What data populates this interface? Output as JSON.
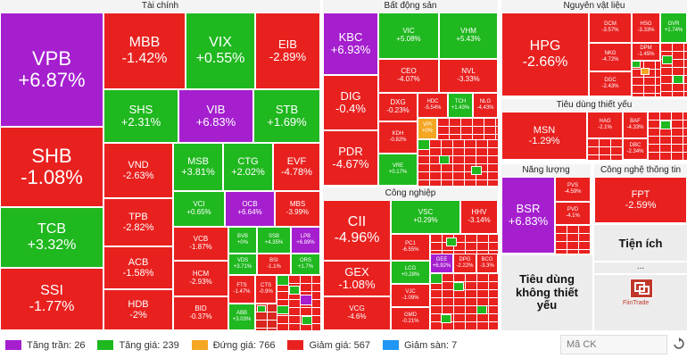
{
  "sectors": {
    "tai_chinh": "Tài chính",
    "bat_dong_san": "Bất động sản",
    "nguyen_vat_lieu": "Nguyên vật liệu",
    "tieu_dung_thiet_yeu": "Tiêu dùng thiết yếu",
    "cong_nghiep": "Công nghiệp",
    "nang_luong": "Năng lượng",
    "cong_nghe_thong_tin": "Công nghệ thông tin",
    "tien_ich": "Tiện ích",
    "tieu_dung_khong_thiet_yeu": "Tiêu dùng không thiết yếu",
    "more": "..."
  },
  "tiles": {
    "VPB": {
      "sym": "VPB",
      "chg": "+6.87%"
    },
    "SHB": {
      "sym": "SHB",
      "chg": "-1.08%"
    },
    "TCB": {
      "sym": "TCB",
      "chg": "+3.32%"
    },
    "SSI": {
      "sym": "SSI",
      "chg": "-1.77%"
    },
    "MBB": {
      "sym": "MBB",
      "chg": "-1.42%"
    },
    "VIX": {
      "sym": "VIX",
      "chg": "+0.55%"
    },
    "EIB": {
      "sym": "EIB",
      "chg": "-2.89%"
    },
    "SHS": {
      "sym": "SHS",
      "chg": "+2.31%"
    },
    "VIB": {
      "sym": "VIB",
      "chg": "+6.83%"
    },
    "STB": {
      "sym": "STB",
      "chg": "+1.69%"
    },
    "VND": {
      "sym": "VND",
      "chg": "-2.63%"
    },
    "MSB": {
      "sym": "MSB",
      "chg": "+3.81%"
    },
    "CTG": {
      "sym": "CTG",
      "chg": "+2.02%"
    },
    "EVF": {
      "sym": "EVF",
      "chg": "-4.78%"
    },
    "TPB": {
      "sym": "TPB",
      "chg": "-2.82%"
    },
    "VCI": {
      "sym": "VCI",
      "chg": "+0.65%"
    },
    "OCB": {
      "sym": "OCB",
      "chg": "+6.64%"
    },
    "MBS": {
      "sym": "MBS",
      "chg": "-3.99%"
    },
    "ACB": {
      "sym": "ACB",
      "chg": "-1.58%"
    },
    "VCB": {
      "sym": "VCB",
      "chg": "-1.87%"
    },
    "BVB": {
      "sym": "BVB",
      "chg": "+0%"
    },
    "SSB": {
      "sym": "SSB",
      "chg": "+4.35%"
    },
    "LPB": {
      "sym": "LPB",
      "chg": "+6.89%"
    },
    "HDB": {
      "sym": "HDB",
      "chg": "-2%"
    },
    "HCM": {
      "sym": "HCM",
      "chg": "-2.93%"
    },
    "VDS": {
      "sym": "VDS",
      "chg": "+3.71%"
    },
    "BSI": {
      "sym": "BSI",
      "chg": "-1.1%"
    },
    "ORS": {
      "sym": "ORS",
      "chg": "+1.7%"
    },
    "BID": {
      "sym": "BID",
      "chg": "-0.37%"
    },
    "FTS": {
      "sym": "FTS",
      "chg": "-1.47%"
    },
    "CTS": {
      "sym": "CTS",
      "chg": "-0.9%"
    },
    "ABB": {
      "sym": "ABB",
      "chg": "+3.03%"
    },
    "KBC": {
      "sym": "KBC",
      "chg": "+6.93%"
    },
    "VIC": {
      "sym": "VIC",
      "chg": "+5.08%"
    },
    "VHM": {
      "sym": "VHM",
      "chg": "+5.43%"
    },
    "CEO": {
      "sym": "CEO",
      "chg": "-4.07%"
    },
    "NVL": {
      "sym": "NVL",
      "chg": "-3.33%"
    },
    "DIG": {
      "sym": "DIG",
      "chg": "-0.4%"
    },
    "DXG": {
      "sym": "DXG",
      "chg": "-0.23%"
    },
    "HDC": {
      "sym": "HDC",
      "chg": "-5.54%"
    },
    "TCH": {
      "sym": "TCH",
      "chg": "+1.43%"
    },
    "NLG": {
      "sym": "NLG",
      "chg": "-4.43%"
    },
    "PDR": {
      "sym": "PDR",
      "chg": "-4.67%"
    },
    "VPI": {
      "sym": "VPI",
      "chg": "+0%"
    },
    "KDH": {
      "sym": "KDH",
      "chg": "-0.82%"
    },
    "VRE": {
      "sym": "VRE",
      "chg": "+0.17%"
    },
    "CII": {
      "sym": "CII",
      "chg": "-4.96%"
    },
    "VSC": {
      "sym": "VSC",
      "chg": "+0.29%"
    },
    "HHV": {
      "sym": "HHV",
      "chg": "-3.14%"
    },
    "PC1": {
      "sym": "PC1",
      "chg": "-6.55%"
    },
    "GEX": {
      "sym": "GEX",
      "chg": "-1.08%"
    },
    "LCG": {
      "sym": "LCG",
      "chg": "+0.28%"
    },
    "GEE": {
      "sym": "GEE",
      "chg": "+6.92%"
    },
    "DPG": {
      "sym": "DPG",
      "chg": "-2.22%"
    },
    "BCG": {
      "sym": "BCG",
      "chg": "-3.3%"
    },
    "VCG": {
      "sym": "VCG",
      "chg": "-4.6%"
    },
    "VJC": {
      "sym": "VJC",
      "chg": "-1.09%"
    },
    "GMD": {
      "sym": "GMD",
      "chg": "-0.21%"
    },
    "HPG": {
      "sym": "HPG",
      "chg": "-2.66%"
    },
    "DCM": {
      "sym": "DCM",
      "chg": "-3.57%"
    },
    "HSG": {
      "sym": "HSG",
      "chg": "-3.33%"
    },
    "GVR": {
      "sym": "GVR",
      "chg": "+1.74%"
    },
    "NKG": {
      "sym": "NKG",
      "chg": "-4.72%"
    },
    "DPM": {
      "sym": "DPM",
      "chg": "-1.45%"
    },
    "DGC": {
      "sym": "DGC",
      "chg": "-2.43%"
    },
    "MSN": {
      "sym": "MSN",
      "chg": "-1.29%"
    },
    "HAG": {
      "sym": "HAG",
      "chg": "-2.1%"
    },
    "BAF": {
      "sym": "BAF",
      "chg": "-4.33%"
    },
    "DBC": {
      "sym": "DBC",
      "chg": "-2.34%"
    },
    "BSR": {
      "sym": "BSR",
      "chg": "+6.83%"
    },
    "PVS": {
      "sym": "PVS",
      "chg": "-4.59%"
    },
    "PVD": {
      "sym": "PVD",
      "chg": "-4.1%"
    },
    "FPT": {
      "sym": "FPT",
      "chg": "-2.59%"
    }
  },
  "legend": {
    "ceiling": "Tăng trần: 26",
    "up": "Tăng giá: 239",
    "flat": "Đứng giá: 766",
    "down": "Giảm giá: 567",
    "floor": "Giảm sàn: 7"
  },
  "search": {
    "placeholder": "Mã CK"
  },
  "logo": {
    "text": "FiinTrade"
  },
  "colors": {
    "ceiling": "#a51fcf",
    "up": "#1fb81f",
    "flat": "#f5a623",
    "down": "#e8211f",
    "floor": "#2196f3"
  }
}
